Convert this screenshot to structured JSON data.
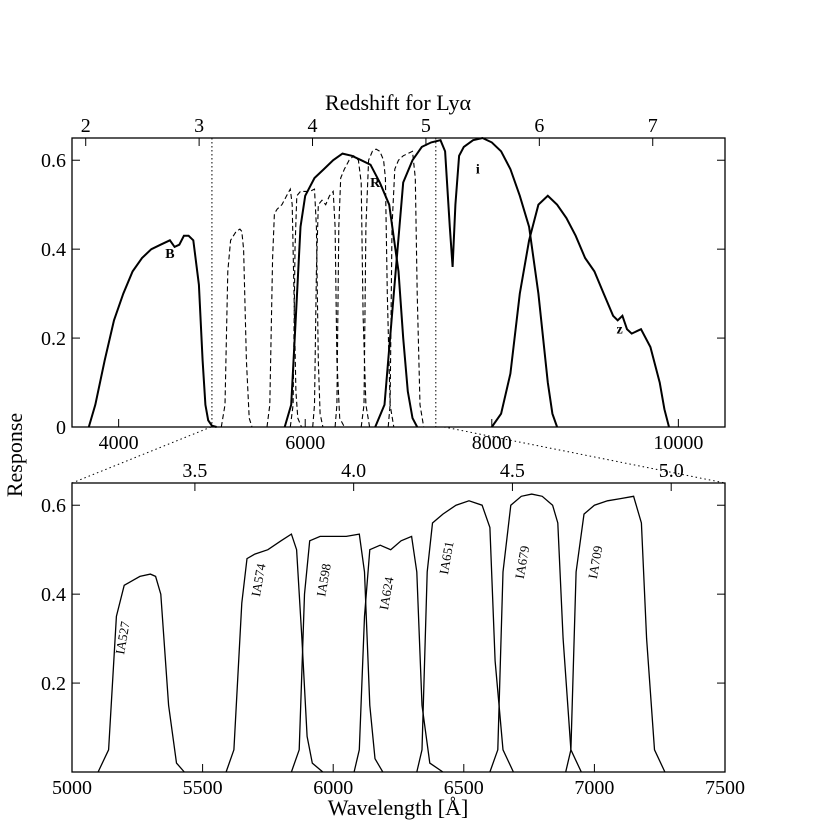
{
  "chart_data": [
    {
      "id": "top",
      "type": "line",
      "xlabel_top": "Redshift for Lyα",
      "ylabel": "Response",
      "xlim": [
        3500,
        10500
      ],
      "ylim": [
        0,
        0.65
      ],
      "x_ticks": [
        4000,
        6000,
        8000,
        10000
      ],
      "y_ticks": [
        0,
        0.2,
        0.4,
        0.6
      ],
      "y_tick_labels": [
        "0",
        "0.2",
        "0.4",
        "0.6"
      ],
      "z_ticks": [
        2,
        3,
        4,
        5,
        6,
        7
      ],
      "vlines_dotted": [
        5000,
        7400
      ],
      "broadband": [
        {
          "name": "B",
          "label": "B",
          "style": "solid",
          "x": [
            3680,
            3750,
            3850,
            3950,
            4050,
            4150,
            4250,
            4350,
            4450,
            4550,
            4600,
            4650,
            4700,
            4750,
            4800,
            4860,
            4900,
            4930,
            4960,
            5000,
            5050
          ],
          "y": [
            0,
            0.05,
            0.15,
            0.24,
            0.3,
            0.35,
            0.38,
            0.4,
            0.41,
            0.42,
            0.405,
            0.41,
            0.43,
            0.43,
            0.42,
            0.32,
            0.15,
            0.05,
            0.015,
            0.003,
            0
          ]
        },
        {
          "name": "R",
          "label": "R",
          "style": "solid",
          "x": [
            5780,
            5850,
            5900,
            5950,
            6000,
            6100,
            6200,
            6300,
            6400,
            6500,
            6600,
            6700,
            6800,
            6900,
            7000,
            7050,
            7100,
            7150,
            7200
          ],
          "y": [
            0,
            0.05,
            0.25,
            0.45,
            0.52,
            0.56,
            0.58,
            0.6,
            0.615,
            0.61,
            0.6,
            0.59,
            0.55,
            0.5,
            0.35,
            0.2,
            0.08,
            0.02,
            0
          ]
        },
        {
          "name": "i",
          "label": "i",
          "style": "solid",
          "x": [
            6750,
            6850,
            6950,
            7050,
            7150,
            7250,
            7350,
            7450,
            7500,
            7550,
            7580,
            7610,
            7650,
            7700,
            7800,
            7900,
            8000,
            8100,
            8200,
            8300,
            8400,
            8500,
            8600,
            8650,
            8700
          ],
          "y": [
            0,
            0.05,
            0.3,
            0.55,
            0.6,
            0.63,
            0.64,
            0.645,
            0.62,
            0.45,
            0.36,
            0.5,
            0.61,
            0.63,
            0.645,
            0.65,
            0.64,
            0.62,
            0.58,
            0.52,
            0.45,
            0.3,
            0.1,
            0.03,
            0
          ]
        },
        {
          "name": "z",
          "label": "z",
          "style": "solid",
          "x": [
            8000,
            8100,
            8200,
            8300,
            8400,
            8500,
            8600,
            8700,
            8800,
            8900,
            9000,
            9100,
            9200,
            9300,
            9350,
            9400,
            9450,
            9500,
            9600,
            9700,
            9800,
            9850,
            9900
          ],
          "y": [
            0,
            0.03,
            0.12,
            0.3,
            0.42,
            0.5,
            0.52,
            0.5,
            0.47,
            0.43,
            0.38,
            0.35,
            0.3,
            0.25,
            0.24,
            0.25,
            0.22,
            0.21,
            0.22,
            0.18,
            0.1,
            0.04,
            0
          ]
        }
      ],
      "intermediate_band_lines": "dashed copies of IA527, IA574, IA598, IA624, IA651, IA679, IA709"
    },
    {
      "id": "bottom",
      "type": "line",
      "xlabel": "Wavelength [Å]",
      "xlim": [
        5000,
        7500
      ],
      "ylim": [
        0,
        0.65
      ],
      "x_ticks": [
        5000,
        5500,
        6000,
        6500,
        7000,
        7500
      ],
      "y_ticks": [
        0.2,
        0.4,
        0.6
      ],
      "y_tick_labels": [
        "0.2",
        "0.4",
        "0.6"
      ],
      "z_ticks": [
        3.5,
        4.0,
        4.5,
        5.0
      ],
      "z_tick_labels": [
        "3.5",
        "4.0",
        "4.5",
        "5.0"
      ],
      "filters": [
        {
          "name": "IA527",
          "label": "IA527",
          "label_x": 5210,
          "label_y": 0.3,
          "x": [
            5100,
            5140,
            5170,
            5200,
            5230,
            5260,
            5300,
            5320,
            5340,
            5370,
            5400,
            5430
          ],
          "y": [
            0,
            0.05,
            0.35,
            0.42,
            0.43,
            0.44,
            0.445,
            0.44,
            0.4,
            0.15,
            0.02,
            0
          ]
        },
        {
          "name": "IA574",
          "label": "IA574",
          "label_x": 5730,
          "label_y": 0.43,
          "x": [
            5590,
            5620,
            5650,
            5670,
            5700,
            5750,
            5800,
            5840,
            5860,
            5880,
            5900,
            5920,
            5960
          ],
          "y": [
            0,
            0.05,
            0.38,
            0.48,
            0.49,
            0.5,
            0.52,
            0.535,
            0.5,
            0.3,
            0.08,
            0.02,
            0
          ]
        },
        {
          "name": "IA598",
          "label": "IA598",
          "label_x": 5980,
          "label_y": 0.43,
          "x": [
            5840,
            5870,
            5890,
            5910,
            5950,
            6000,
            6050,
            6100,
            6120,
            6140,
            6160,
            6190
          ],
          "y": [
            0,
            0.05,
            0.4,
            0.52,
            0.53,
            0.53,
            0.53,
            0.535,
            0.45,
            0.15,
            0.03,
            0
          ]
        },
        {
          "name": "IA624",
          "label": "IA624",
          "label_x": 6220,
          "label_y": 0.4,
          "x": [
            6080,
            6100,
            6120,
            6140,
            6180,
            6220,
            6260,
            6300,
            6320,
            6340,
            6370,
            6420
          ],
          "y": [
            0,
            0.05,
            0.35,
            0.5,
            0.51,
            0.5,
            0.52,
            0.53,
            0.45,
            0.15,
            0.02,
            0
          ]
        },
        {
          "name": "IA651",
          "label": "IA651",
          "label_x": 6450,
          "label_y": 0.48,
          "x": [
            6320,
            6340,
            6360,
            6380,
            6420,
            6470,
            6520,
            6570,
            6600,
            6620,
            6650,
            6690
          ],
          "y": [
            0,
            0.05,
            0.45,
            0.56,
            0.58,
            0.6,
            0.61,
            0.6,
            0.55,
            0.25,
            0.05,
            0
          ]
        },
        {
          "name": "IA679",
          "label": "IA679",
          "label_x": 6740,
          "label_y": 0.47,
          "x": [
            6600,
            6630,
            6650,
            6680,
            6720,
            6760,
            6800,
            6840,
            6860,
            6880,
            6910,
            6950
          ],
          "y": [
            0,
            0.05,
            0.45,
            0.6,
            0.62,
            0.625,
            0.62,
            0.6,
            0.56,
            0.3,
            0.05,
            0
          ]
        },
        {
          "name": "IA709",
          "label": "IA709",
          "label_x": 7020,
          "label_y": 0.47,
          "x": [
            6890,
            6910,
            6930,
            6960,
            7000,
            7050,
            7100,
            7150,
            7180,
            7200,
            7230,
            7270
          ],
          "y": [
            0,
            0.05,
            0.45,
            0.58,
            0.6,
            0.61,
            0.615,
            0.62,
            0.56,
            0.3,
            0.05,
            0
          ]
        }
      ]
    }
  ]
}
